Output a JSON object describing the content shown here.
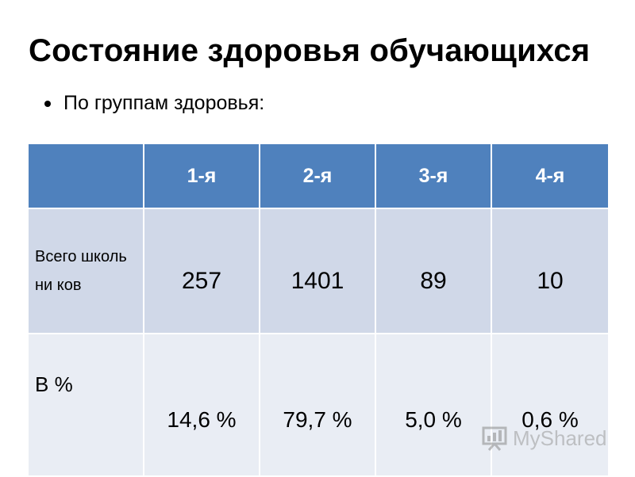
{
  "slide": {
    "title": "Состояние здоровья обучающихся",
    "bullet": "По группам здоровья:"
  },
  "table": {
    "columns": [
      "",
      "1-я",
      "2-я",
      "3-я",
      "4-я"
    ],
    "rows": [
      {
        "label": "Всего школьни ков",
        "values": [
          "257",
          "1401",
          "89",
          "10"
        ]
      },
      {
        "label": "В %",
        "values": [
          "14,6 %",
          "79,7 %",
          "5,0 %",
          "0,6 %"
        ]
      }
    ],
    "header_color": "#4f81bd",
    "row_colors": [
      "#d0d8e8",
      "#e9edf4"
    ]
  },
  "watermark": {
    "text": "MyShared",
    "icon": "presentation-board-icon"
  }
}
